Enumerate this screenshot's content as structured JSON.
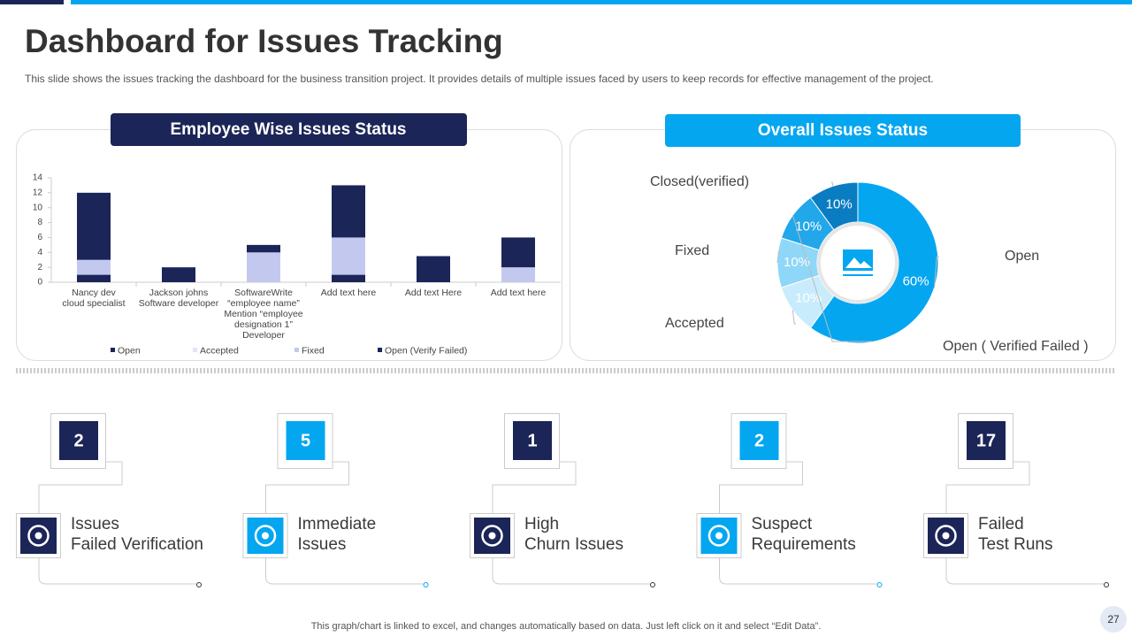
{
  "title": "Dashboard for Issues Tracking",
  "subtitle": "This slide shows the issues tracking the dashboard for the business transition project. It provides details of multiple issues faced by users to keep records for effective  management of the project.",
  "chart_data": [
    {
      "type": "bar",
      "stacked": true,
      "title": "Employee Wise Issues Status",
      "categories": [
        "Nancy dev\ncloud specialist",
        "Jackson johns\nSoftware developer",
        "SoftwareWrite\n“employee name”\nMention “employee\ndesignation 1”\nDeveloper",
        "Add text here",
        "Add text Here",
        "Add text here"
      ],
      "series": [
        {
          "name": "Open",
          "color": "#1b2557",
          "values": [
            1,
            2,
            0,
            1,
            3.5,
            0
          ]
        },
        {
          "name": "Accepted",
          "color": "#dfe6f7",
          "values": [
            0,
            0,
            0,
            0,
            0,
            0
          ]
        },
        {
          "name": "Fixed",
          "color": "#c3c9ee",
          "values": [
            2,
            0,
            4,
            5,
            0,
            2
          ]
        },
        {
          "name": "Open (Verify Failed)",
          "color": "#1b2557",
          "values": [
            9,
            0,
            1,
            7,
            0,
            4
          ]
        }
      ],
      "ylim": [
        0,
        14
      ],
      "yticks": [
        0,
        2,
        4,
        6,
        8,
        10,
        12,
        14
      ],
      "grid": false,
      "legend": "bottom"
    },
    {
      "type": "donut",
      "title": "Overall Issues Status",
      "categories": [
        "Open",
        "Accepted",
        "Fixed",
        "Open ( Verified Failed )",
        "Closed(verified)"
      ],
      "values": [
        60,
        10,
        10,
        10,
        10
      ],
      "value_labels": [
        "60%",
        "10%",
        "10%",
        "10%",
        "10%"
      ],
      "colors": [
        "#05a6f0",
        "#c8ecfc",
        "#8fd7f8",
        "#21a7ea",
        "#0a7cc2"
      ]
    }
  ],
  "kpis": [
    {
      "value": 2,
      "label": "Issues\nFailed Verification",
      "color": "#1b2557"
    },
    {
      "value": 5,
      "label": "Immediate\nIssues",
      "color": "#05a6f0"
    },
    {
      "value": 1,
      "label": "High\nChurn Issues",
      "color": "#1b2557"
    },
    {
      "value": 2,
      "label": "Suspect\nRequirements",
      "color": "#05a6f0"
    },
    {
      "value": 17,
      "label": "Failed\nTest Runs",
      "color": "#1b2557"
    }
  ],
  "footer": "This graph/chart is linked to excel,  and changes automatically based on data. Just left click on it and select “Edit Data”.",
  "page_number": 27
}
